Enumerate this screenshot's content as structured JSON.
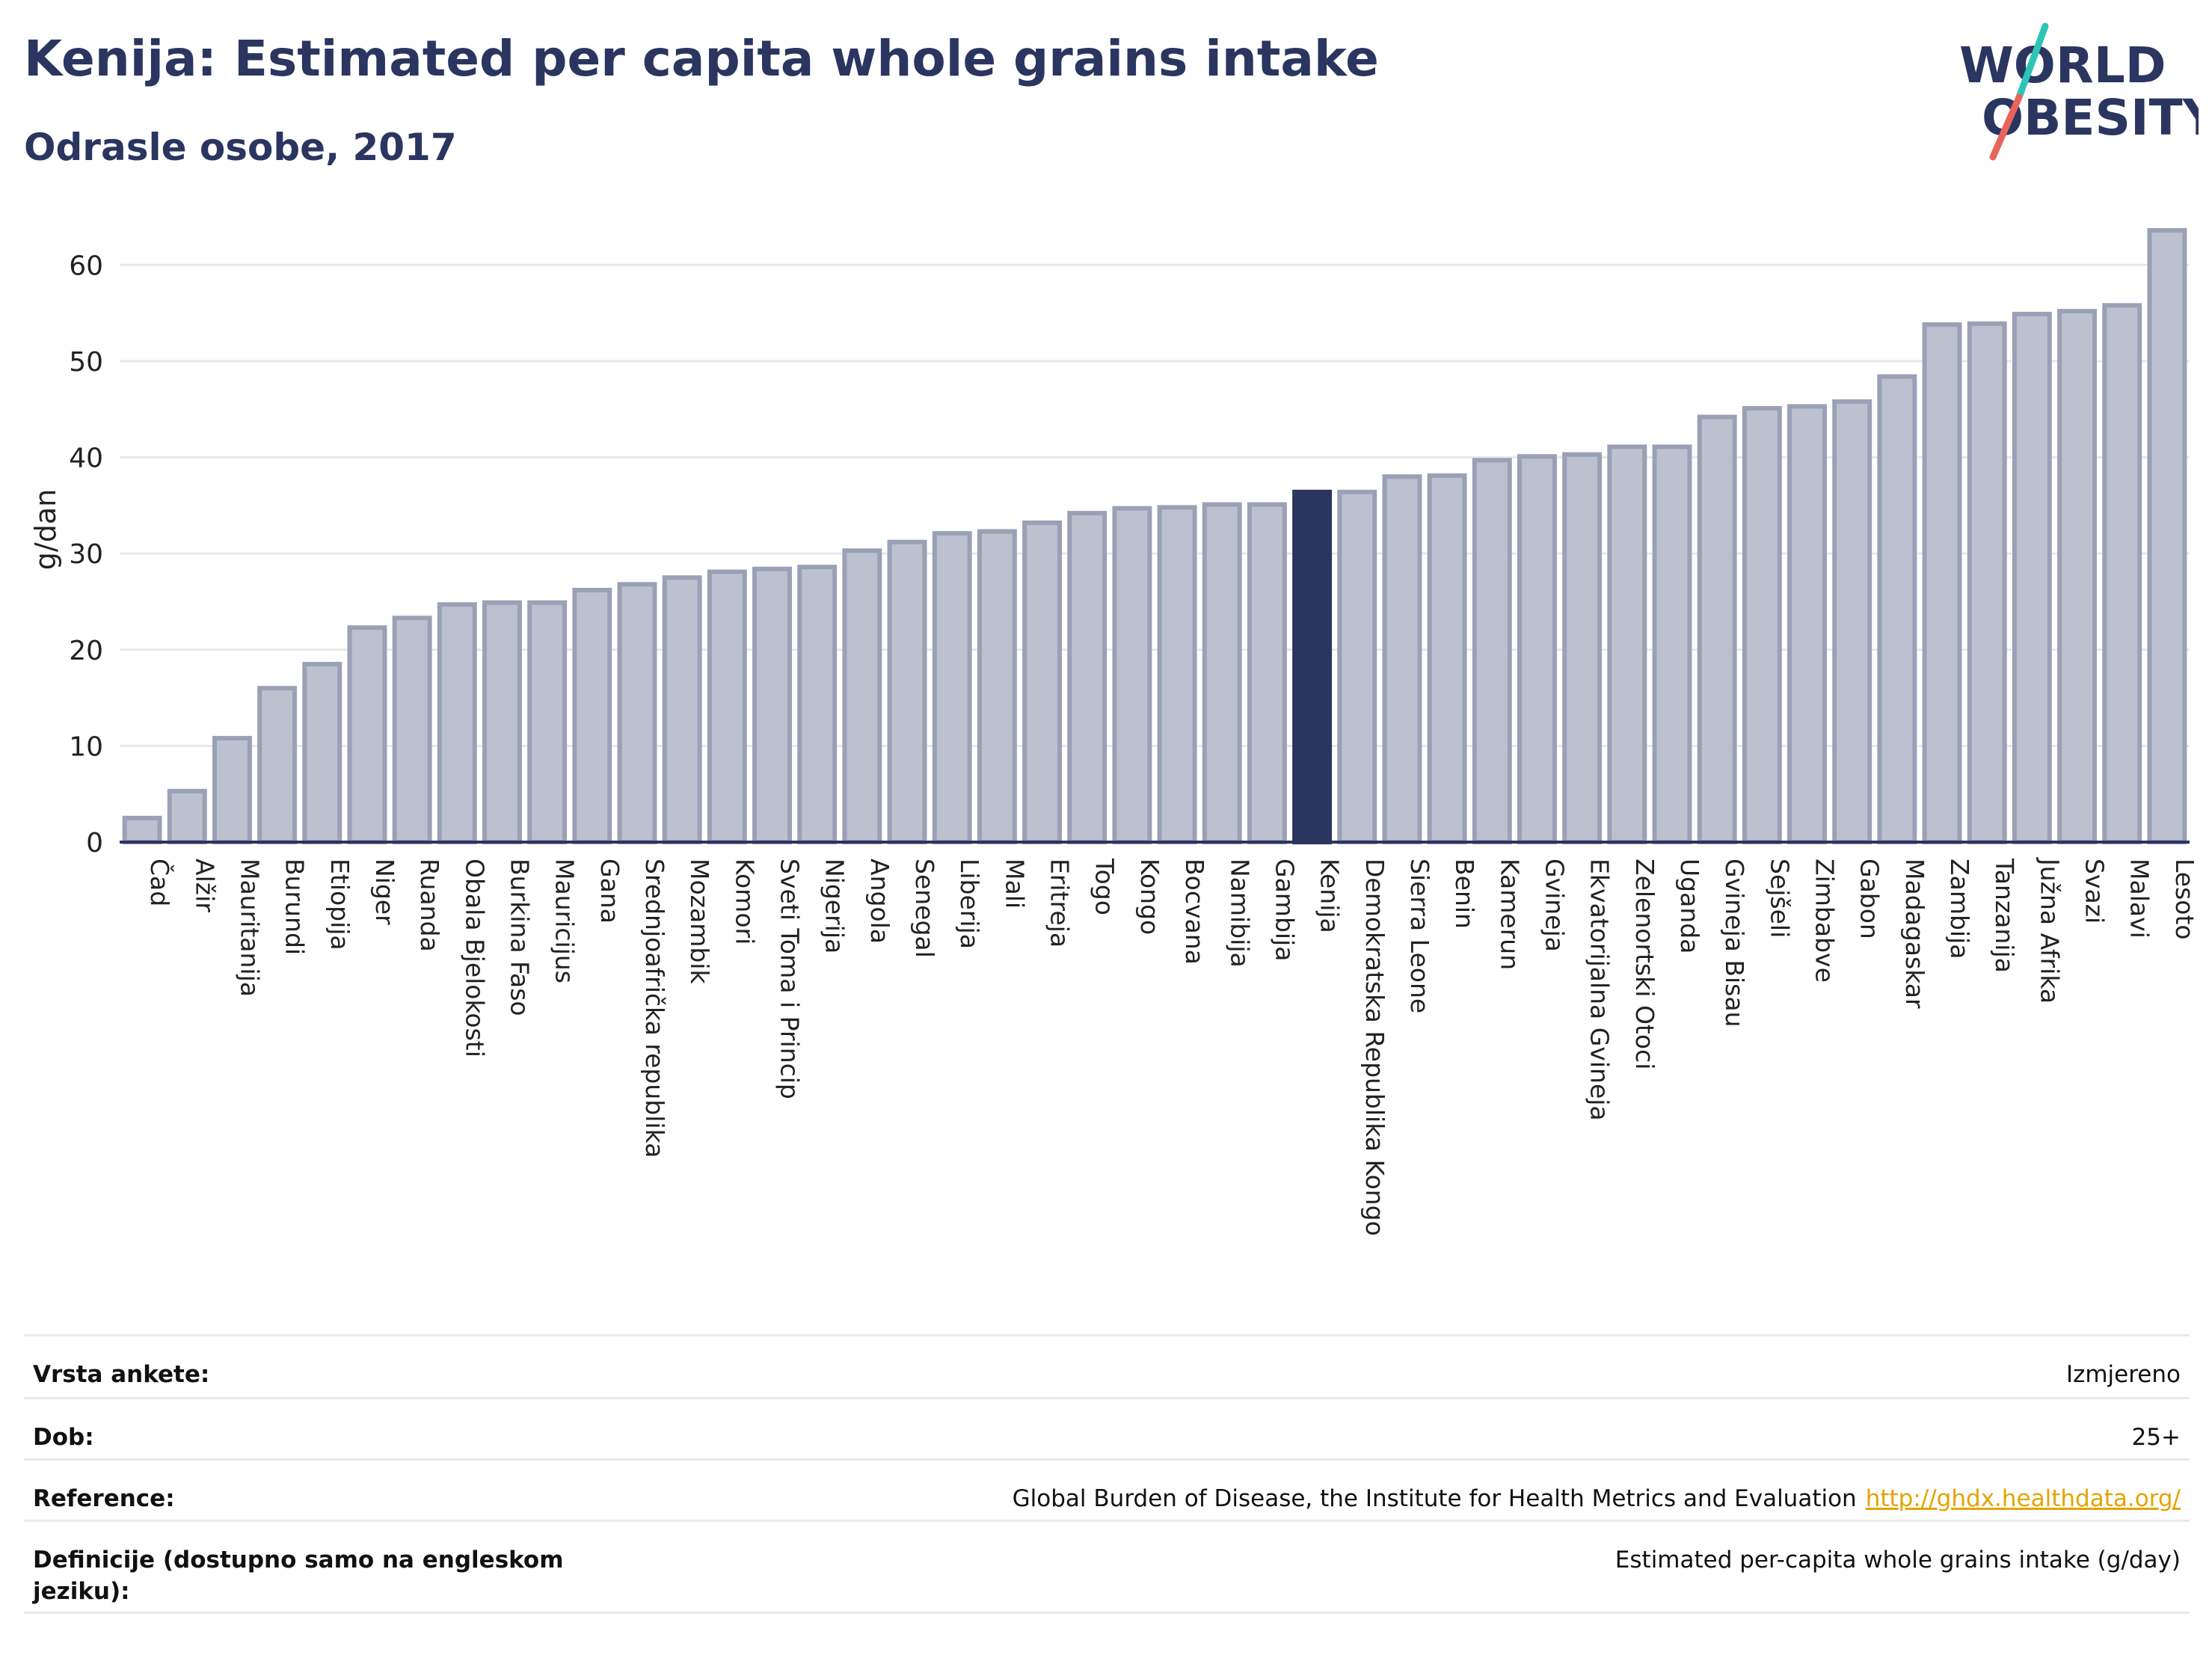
{
  "header": {
    "title": "Kenija: Estimated per capita whole grains intake",
    "subtitle": "Odrasle osobe, 2017"
  },
  "logo": {
    "line1": "WORLD",
    "line2": "OBESITY",
    "colors": {
      "text": "#2a3560",
      "slash_teal": "#2ec4b6",
      "slash_red": "#e8645a"
    }
  },
  "colors": {
    "bar_fill": "#bcc0cf",
    "bar_stroke": "#9aa0b6",
    "highlight": "#2a3560",
    "grid": "#e6e8f0",
    "axis": "#2a3560"
  },
  "chart_data": {
    "type": "bar",
    "ylabel": "g/dan",
    "ylim": [
      0,
      65
    ],
    "yticks": [
      0,
      10,
      20,
      30,
      40,
      50,
      60
    ],
    "grid": true,
    "highlight": "Kenija",
    "categories": [
      "Čad",
      "Alžir",
      "Mauritanija",
      "Burundi",
      "Etiopija",
      "Niger",
      "Ruanda",
      "Obala Bjelokosti",
      "Burkina Faso",
      "Mauricijus",
      "Gana",
      "Srednjoafrička republika",
      "Mozambik",
      "Komori",
      "Sveti Toma i Princip",
      "Nigerija",
      "Angola",
      "Senegal",
      "Liberija",
      "Mali",
      "Eritreja",
      "Togo",
      "Kongo",
      "Bocvana",
      "Namibija",
      "Gambija",
      "Kenija",
      "Demokratska Republika Kongo",
      "Sierra Leone",
      "Benin",
      "Kamerun",
      "Gvineja",
      "Ekvatorijalna Gvineja",
      "Zelenortski Otoci",
      "Uganda",
      "Gvineja Bisau",
      "Sejšeli",
      "Zimbabve",
      "Gabon",
      "Madagaskar",
      "Zambija",
      "Tanzanija",
      "Južna Afrika",
      "Svazi",
      "Malavi",
      "Lesoto"
    ],
    "values": [
      2.5,
      5.3,
      10.8,
      16.0,
      18.5,
      22.3,
      23.3,
      24.7,
      24.9,
      24.9,
      26.2,
      26.8,
      27.5,
      28.1,
      28.4,
      28.6,
      30.3,
      31.2,
      32.1,
      32.3,
      33.2,
      34.2,
      34.7,
      34.8,
      35.1,
      35.1,
      36.4,
      36.4,
      38.0,
      38.1,
      39.7,
      40.1,
      40.3,
      41.1,
      41.1,
      44.2,
      45.1,
      45.3,
      45.8,
      48.4,
      53.8,
      53.9,
      54.9,
      55.2,
      55.8,
      63.6
    ]
  },
  "meta": [
    {
      "label": "Vrsta ankete:",
      "value": "Izmjereno"
    },
    {
      "label": "Dob:",
      "value": "25+"
    },
    {
      "label": "Reference:",
      "value": "Global Burden of Disease, the Institute for Health Metrics and Evaluation",
      "link": "http://ghdx.healthdata.org/"
    },
    {
      "label": "Definicije (dostupno samo na engleskom jeziku):",
      "value": "Estimated per-capita whole grains intake (g/day)"
    }
  ]
}
